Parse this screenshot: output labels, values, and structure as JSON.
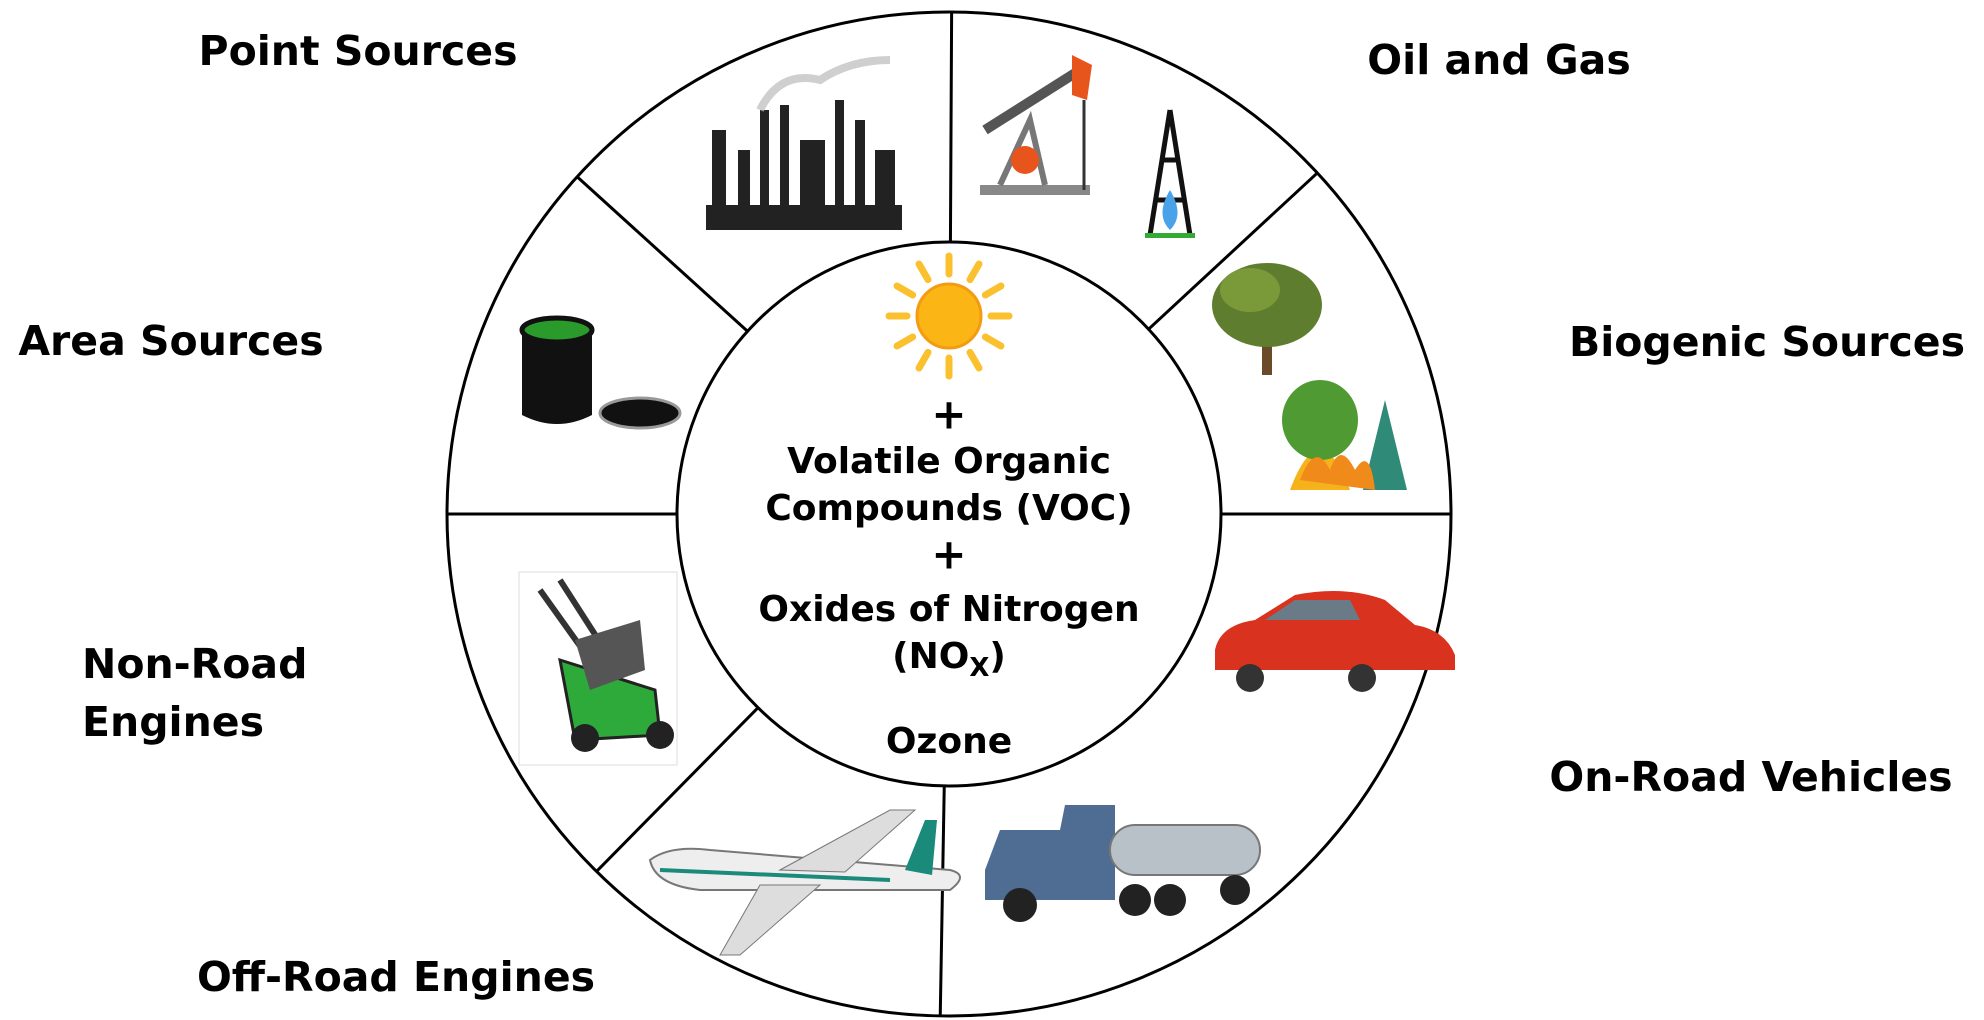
{
  "sources": {
    "point": "Point Sources",
    "oil_gas": "Oil and Gas",
    "area": "Area Sources",
    "biogenic": "Biogenic Sources",
    "non_road": [
      "Non-Road",
      "Engines"
    ],
    "on_road": "On-Road Vehicles",
    "off_road": "Off-Road Engines"
  },
  "center": {
    "plus_1": "+",
    "voc": [
      "Volatile Organic",
      "Compounds (VOC)"
    ],
    "plus_2": "+",
    "nox_line_1": "Oxides of Nitrogen",
    "nox_line_2": [
      "(NO",
      "X",
      ")"
    ],
    "result": "Ozone"
  }
}
